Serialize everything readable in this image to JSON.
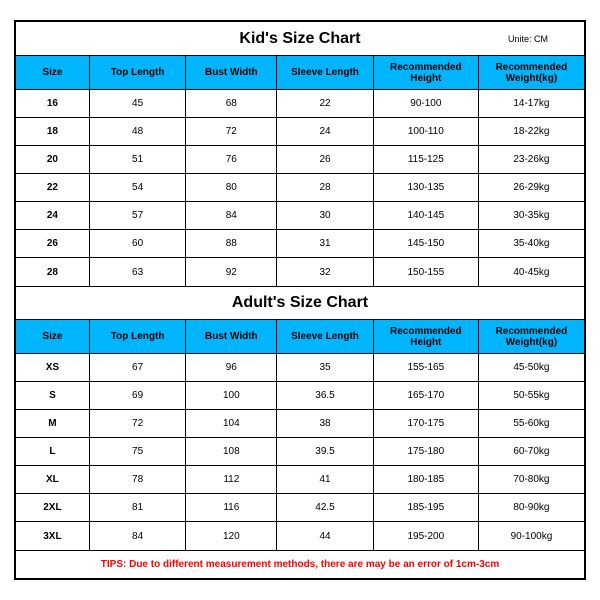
{
  "unit_label": "Unite: CM",
  "columns": [
    "Size",
    "Top Length",
    "Bust Width",
    "Sleeve Length",
    "Recommended Height",
    "Recommended Weight(kg)"
  ],
  "column_widths_pct": [
    13,
    17,
    16,
    17,
    18.5,
    18.5
  ],
  "kids": {
    "title": "Kid's Size Chart",
    "rows": [
      [
        "16",
        "45",
        "68",
        "22",
        "90-100",
        "14-17kg"
      ],
      [
        "18",
        "48",
        "72",
        "24",
        "100-110",
        "18-22kg"
      ],
      [
        "20",
        "51",
        "76",
        "26",
        "115-125",
        "23-26kg"
      ],
      [
        "22",
        "54",
        "80",
        "28",
        "130-135",
        "26-29kg"
      ],
      [
        "24",
        "57",
        "84",
        "30",
        "140-145",
        "30-35kg"
      ],
      [
        "26",
        "60",
        "88",
        "31",
        "145-150",
        "35-40kg"
      ],
      [
        "28",
        "63",
        "92",
        "32",
        "150-155",
        "40-45kg"
      ]
    ]
  },
  "adults": {
    "title": "Adult's Size Chart",
    "rows": [
      [
        "XS",
        "67",
        "96",
        "35",
        "155-165",
        "45-50kg"
      ],
      [
        "S",
        "69",
        "100",
        "36.5",
        "165-170",
        "50-55kg"
      ],
      [
        "M",
        "72",
        "104",
        "38",
        "170-175",
        "55-60kg"
      ],
      [
        "L",
        "75",
        "108",
        "39.5",
        "175-180",
        "60-70kg"
      ],
      [
        "XL",
        "78",
        "112",
        "41",
        "180-185",
        "70-80kg"
      ],
      [
        "2XL",
        "81",
        "116",
        "42.5",
        "185-195",
        "80-90kg"
      ],
      [
        "3XL",
        "84",
        "120",
        "44",
        "195-200",
        "90-100kg"
      ]
    ]
  },
  "tips": "TIPS: Due to different measurement methods, there are may be an error of 1cm-3cm",
  "colors": {
    "header_bg": "#00B5FC",
    "border": "#000000",
    "text": "#000000",
    "tips": "#FF0000",
    "background": "#ffffff"
  },
  "fontsize": {
    "title": 16,
    "header": 10,
    "cell": 10,
    "tips": 10,
    "unit": 9
  }
}
